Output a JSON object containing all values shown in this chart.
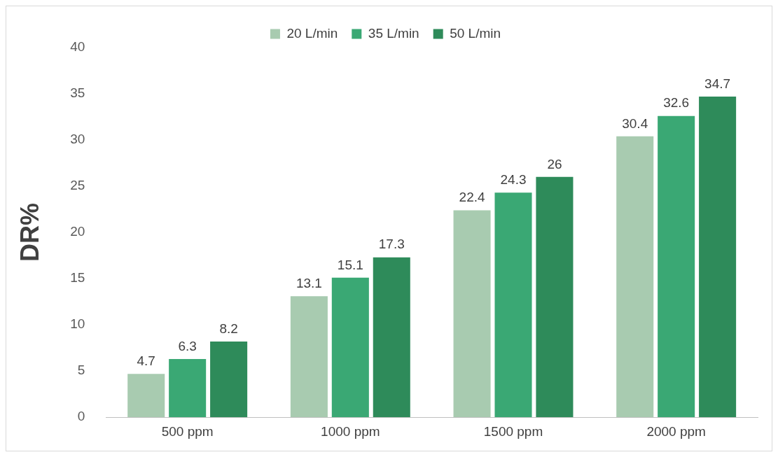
{
  "chart_data": {
    "type": "bar",
    "ylabel": "DR%",
    "categories": [
      "500 ppm",
      "1000 ppm",
      "1500 ppm",
      "2000 ppm"
    ],
    "series": [
      {
        "name": "20 L/min",
        "color": "#a8cbb0",
        "values": [
          4.7,
          13.1,
          22.4,
          30.4
        ]
      },
      {
        "name": "35 L/min",
        "color": "#3aa874",
        "values": [
          6.3,
          15.1,
          24.3,
          32.6
        ]
      },
      {
        "name": "50 L/min",
        "color": "#2e8b5a",
        "values": [
          8.2,
          17.3,
          26,
          34.7
        ]
      }
    ],
    "ylim": [
      0,
      40
    ],
    "yticks": [
      0,
      5,
      10,
      15,
      20,
      25,
      30,
      35,
      40
    ],
    "grid": false,
    "legend": "top",
    "data_labels": true
  }
}
